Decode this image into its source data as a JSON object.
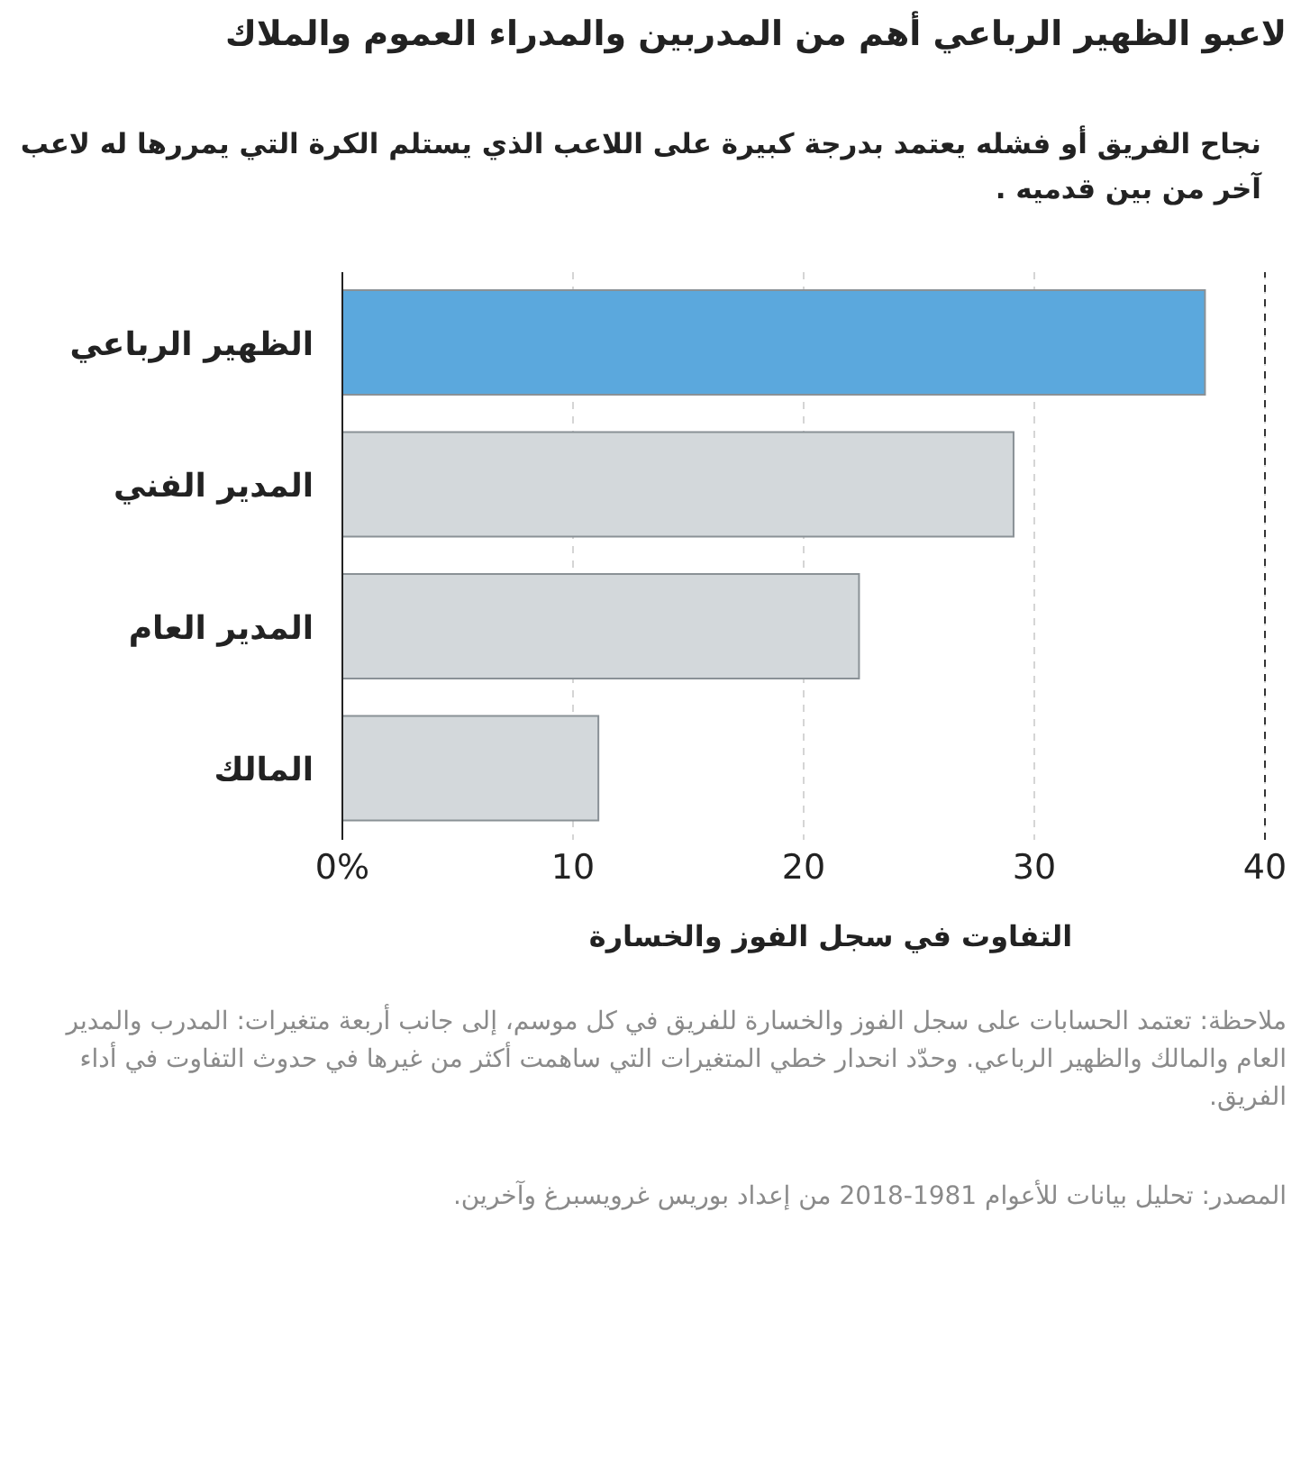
{
  "chart_data": {
    "type": "bar",
    "orientation": "horizontal",
    "title": "لاعبو الظهير الرباعي أهم من المدربين والمدراء العموم والملاك",
    "subtitle": "نجاح الفريق أو فشله يعتمد بدرجة كبيرة على اللاعب الذي يستلم الكرة التي يمررها له لاعب آخر من بين قدميه .",
    "xlabel": "التفاوت في سجل الفوز والخسارة",
    "categories": [
      "الظهير الرباعي",
      "المدير الفني",
      "المدير العام",
      "المالك"
    ],
    "values": [
      37.4,
      29.1,
      22.4,
      11.1
    ],
    "colors": [
      "#5ba8dd",
      "#d3d8db",
      "#d3d8db",
      "#d3d8db"
    ],
    "xlim": [
      0,
      40
    ],
    "xticks": [
      {
        "value": 0,
        "label": "0%"
      },
      10,
      20,
      30,
      40
    ],
    "grid": "x",
    "ref_lines": [
      {
        "axis": "x",
        "value": 40,
        "color": "#333333",
        "line_style": "dashed"
      }
    ],
    "annotations": [
      "ملاحظة: تعتمد الحسابات على سجل الفوز والخسارة للفريق في كل موسم، إلى جانب أربعة متغيرات: المدرب والمدير العام والمالك والظهير الرباعي. وحدّد انحدار خطي المتغيرات التي ساهمت أكثر من غيرها في حدوث التفاوت في أداء الفريق.",
      "المصدر: تحليل بيانات للأعوام 1981-2018 من إعداد بوريس غرويسبرغ وآخرين."
    ]
  }
}
